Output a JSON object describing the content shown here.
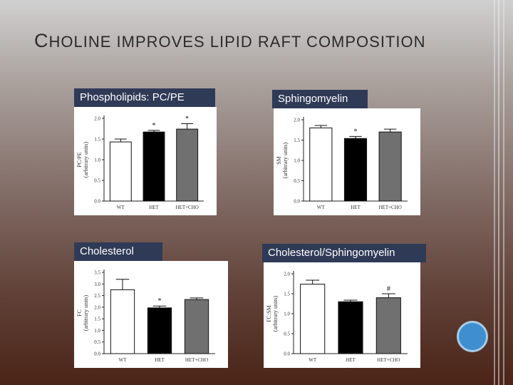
{
  "slide": {
    "title_first": "C",
    "title_rest": "HOLINE IMPROVES LIPID RAFT COMPOSITION"
  },
  "colors": {
    "wt": "#ffffff",
    "het": "#000000",
    "het_cho": "#707070",
    "label_bg": "#2f3a56",
    "accent_circle": "#3f8fd0"
  },
  "chart_data": [
    {
      "type": "bar",
      "panel_label": "Phospholipids: PC/PE",
      "ylabel": "PC/PE\n(arbitrary units)",
      "categories": [
        "WT",
        "HET",
        "HET+CHO"
      ],
      "values": [
        1.43,
        1.67,
        1.74
      ],
      "errors": [
        0.07,
        0.04,
        0.13
      ],
      "markers": [
        "",
        "*",
        "*"
      ],
      "ylim": [
        0,
        2.0
      ],
      "yticks": [
        "0.0",
        "0.5",
        "1.0",
        "1.5",
        "2.0"
      ]
    },
    {
      "type": "bar",
      "panel_label": "Sphingomyelin",
      "ylabel": "SM\n(arbitrary units)",
      "categories": [
        "WT",
        "HET",
        "HET+CHO"
      ],
      "values": [
        1.8,
        1.54,
        1.7
      ],
      "errors": [
        0.06,
        0.05,
        0.07
      ],
      "markers": [
        "",
        "*",
        ""
      ],
      "ylim": [
        0,
        2.0
      ],
      "yticks": [
        "0.0",
        "0.5",
        "1.0",
        "1.5",
        "2.0"
      ]
    },
    {
      "type": "bar",
      "panel_label": "Cholesterol",
      "ylabel": "FC\n(arbitrary units)",
      "categories": [
        "WT",
        "HET",
        "HET+CHO"
      ],
      "values": [
        2.75,
        1.97,
        2.33
      ],
      "errors": [
        0.45,
        0.08,
        0.07
      ],
      "markers": [
        "",
        "*",
        ""
      ],
      "ylim": [
        0,
        3.5
      ],
      "yticks": [
        "0.0",
        "0.5",
        "1.0",
        "1.5",
        "2.0",
        "2.5",
        "3.0",
        "3.5"
      ]
    },
    {
      "type": "bar",
      "panel_label": "Cholesterol/Sphingomyelin",
      "ylabel": "FC:SM\n(arbitrary units)",
      "categories": [
        "WT",
        "HET",
        "HET+CHO"
      ],
      "values": [
        1.74,
        1.3,
        1.4
      ],
      "errors": [
        0.1,
        0.04,
        0.1
      ],
      "markers": [
        "",
        "",
        "#"
      ],
      "ylim": [
        0,
        2.0
      ],
      "yticks": [
        "0.0",
        "0.5",
        "1.0",
        "1.5",
        "2.0"
      ]
    }
  ]
}
